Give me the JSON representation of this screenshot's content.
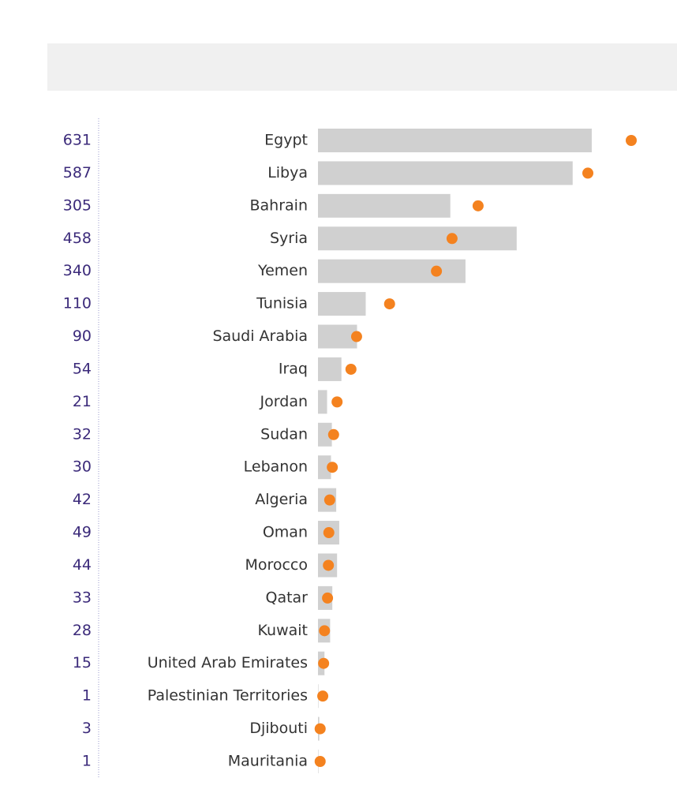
{
  "chart_data": {
    "type": "bar-dot",
    "categories": [
      "Egypt",
      "Libya",
      "Bahrain",
      "Syria",
      "Yemen",
      "Tunisia",
      "Saudi Arabia",
      "Iraq",
      "Jordan",
      "Sudan",
      "Lebanon",
      "Algeria",
      "Oman",
      "Morocco",
      "Qatar",
      "Kuwait",
      "United Arab Emirates",
      "Palestinian Territories",
      "Djibouti",
      "Mauritania"
    ],
    "series": [
      {
        "color": "#d0d0d0",
        "values": [
          631,
          587,
          305,
          458,
          340,
          110,
          90,
          54,
          21,
          32,
          30,
          42,
          49,
          44,
          33,
          28,
          15,
          1,
          3,
          1
        ]
      },
      {
        "color": "#f4821f",
        "values": [
          722,
          622,
          369,
          309,
          273,
          165,
          89,
          76,
          44,
          36,
          33,
          27,
          25,
          24,
          22,
          15,
          13,
          11,
          5,
          5
        ]
      }
    ]
  }
}
